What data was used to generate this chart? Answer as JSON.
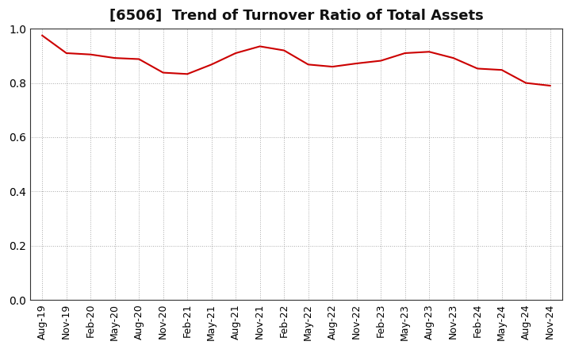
{
  "title": "[6506]  Trend of Turnover Ratio of Total Assets",
  "title_fontsize": 13,
  "title_fontweight": "bold",
  "line_color": "#cc0000",
  "line_width": 1.5,
  "background_color": "#ffffff",
  "grid_color": "#aaaaaa",
  "ylim": [
    0.0,
    1.0
  ],
  "yticks": [
    0.0,
    0.2,
    0.4,
    0.6,
    0.8,
    1.0
  ],
  "x_labels": [
    "Aug-19",
    "Nov-19",
    "Feb-20",
    "May-20",
    "Aug-20",
    "Nov-20",
    "Feb-21",
    "May-21",
    "Aug-21",
    "Nov-21",
    "Feb-22",
    "May-22",
    "Aug-22",
    "Nov-22",
    "Feb-23",
    "May-23",
    "Aug-23",
    "Nov-23",
    "Feb-24",
    "May-24",
    "Aug-24",
    "Nov-24"
  ],
  "values": [
    0.975,
    0.91,
    0.905,
    0.892,
    0.888,
    0.838,
    0.833,
    0.868,
    0.91,
    0.935,
    0.92,
    0.868,
    0.86,
    0.872,
    0.882,
    0.91,
    0.915,
    0.892,
    0.853,
    0.848,
    0.8,
    0.79
  ]
}
